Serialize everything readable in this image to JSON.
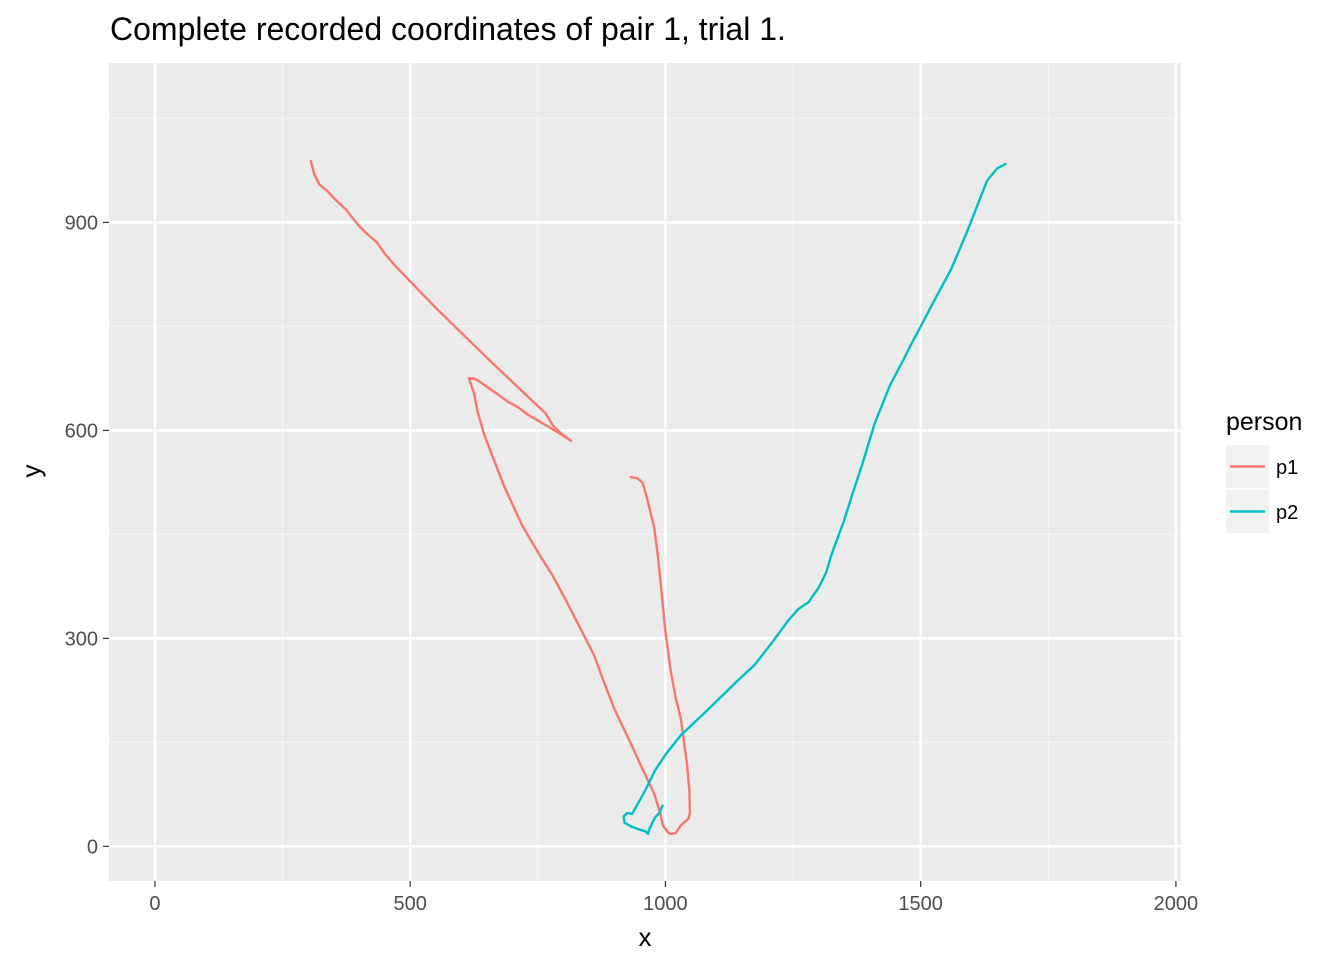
{
  "chart_data": {
    "type": "line",
    "title": "Complete recorded coordinates of pair 1, trial 1.",
    "xlabel": "x",
    "ylabel": "y",
    "xlim": [
      -90,
      2010
    ],
    "ylim": [
      -50,
      1130
    ],
    "x_ticks": [
      0,
      500,
      1000,
      1500,
      2000
    ],
    "y_ticks": [
      0,
      300,
      600,
      900
    ],
    "x_tick_labels": [
      "0",
      "500",
      "1000",
      "1500",
      "2000"
    ],
    "y_tick_labels": [
      "0",
      "300",
      "600",
      "900"
    ],
    "x_minor": [
      250,
      750,
      1250,
      1750
    ],
    "y_minor": [
      150,
      450,
      750,
      1050
    ],
    "grid": true,
    "legend": {
      "title": "person",
      "position": "right"
    },
    "series": [
      {
        "name": "p1",
        "color": "#F8766D",
        "points": [
          [
            305,
            990
          ],
          [
            312,
            970
          ],
          [
            322,
            955
          ],
          [
            338,
            945
          ],
          [
            355,
            932
          ],
          [
            375,
            918
          ],
          [
            390,
            904
          ],
          [
            402,
            893
          ],
          [
            418,
            882
          ],
          [
            435,
            871
          ],
          [
            450,
            855
          ],
          [
            470,
            838
          ],
          [
            500,
            815
          ],
          [
            550,
            777
          ],
          [
            600,
            741
          ],
          [
            650,
            705
          ],
          [
            700,
            670
          ],
          [
            740,
            642
          ],
          [
            765,
            625
          ],
          [
            780,
            607
          ],
          [
            795,
            596
          ],
          [
            815,
            585
          ],
          [
            790,
            597
          ],
          [
            760,
            610
          ],
          [
            730,
            623
          ],
          [
            710,
            634
          ],
          [
            690,
            642
          ],
          [
            670,
            653
          ],
          [
            650,
            663
          ],
          [
            635,
            671
          ],
          [
            625,
            675
          ],
          [
            615,
            675
          ],
          [
            625,
            654
          ],
          [
            632,
            627
          ],
          [
            645,
            594
          ],
          [
            660,
            565
          ],
          [
            685,
            518
          ],
          [
            720,
            462
          ],
          [
            758,
            415
          ],
          [
            778,
            392
          ],
          [
            805,
            355
          ],
          [
            835,
            312
          ],
          [
            860,
            276
          ],
          [
            880,
            236
          ],
          [
            900,
            198
          ],
          [
            930,
            152
          ],
          [
            955,
            112
          ],
          [
            978,
            76
          ],
          [
            990,
            48
          ],
          [
            995,
            30
          ],
          [
            1005,
            20
          ],
          [
            1010,
            18
          ],
          [
            1020,
            19
          ],
          [
            1030,
            30
          ],
          [
            1045,
            40
          ],
          [
            1048,
            48
          ],
          [
            1047,
            80
          ],
          [
            1042,
            120
          ],
          [
            1035,
            158
          ],
          [
            1030,
            185
          ],
          [
            1020,
            215
          ],
          [
            1010,
            255
          ],
          [
            1000,
            310
          ],
          [
            992,
            370
          ],
          [
            985,
            420
          ],
          [
            978,
            460
          ],
          [
            968,
            490
          ],
          [
            962,
            508
          ],
          [
            955,
            525
          ],
          [
            945,
            531
          ],
          [
            930,
            533
          ]
        ]
      },
      {
        "name": "p2",
        "color": "#00BFC4",
        "points": [
          [
            995,
            60
          ],
          [
            988,
            48
          ],
          [
            980,
            42
          ],
          [
            975,
            35
          ],
          [
            968,
            24
          ],
          [
            966,
            18
          ],
          [
            960,
            22
          ],
          [
            950,
            24
          ],
          [
            935,
            28
          ],
          [
            920,
            34
          ],
          [
            918,
            43
          ],
          [
            925,
            48
          ],
          [
            935,
            47
          ],
          [
            945,
            60
          ],
          [
            960,
            80
          ],
          [
            980,
            110
          ],
          [
            1000,
            132
          ],
          [
            1030,
            160
          ],
          [
            1080,
            195
          ],
          [
            1140,
            238
          ],
          [
            1175,
            262
          ],
          [
            1210,
            295
          ],
          [
            1240,
            325
          ],
          [
            1260,
            342
          ],
          [
            1280,
            352
          ],
          [
            1300,
            373
          ],
          [
            1315,
            395
          ],
          [
            1325,
            420
          ],
          [
            1335,
            440
          ],
          [
            1350,
            470
          ],
          [
            1365,
            505
          ],
          [
            1385,
            550
          ],
          [
            1410,
            610
          ],
          [
            1440,
            665
          ],
          [
            1465,
            700
          ],
          [
            1480,
            722
          ],
          [
            1500,
            750
          ],
          [
            1525,
            785
          ],
          [
            1560,
            833
          ],
          [
            1590,
            885
          ],
          [
            1615,
            932
          ],
          [
            1630,
            960
          ],
          [
            1650,
            978
          ],
          [
            1668,
            985
          ]
        ]
      }
    ]
  }
}
